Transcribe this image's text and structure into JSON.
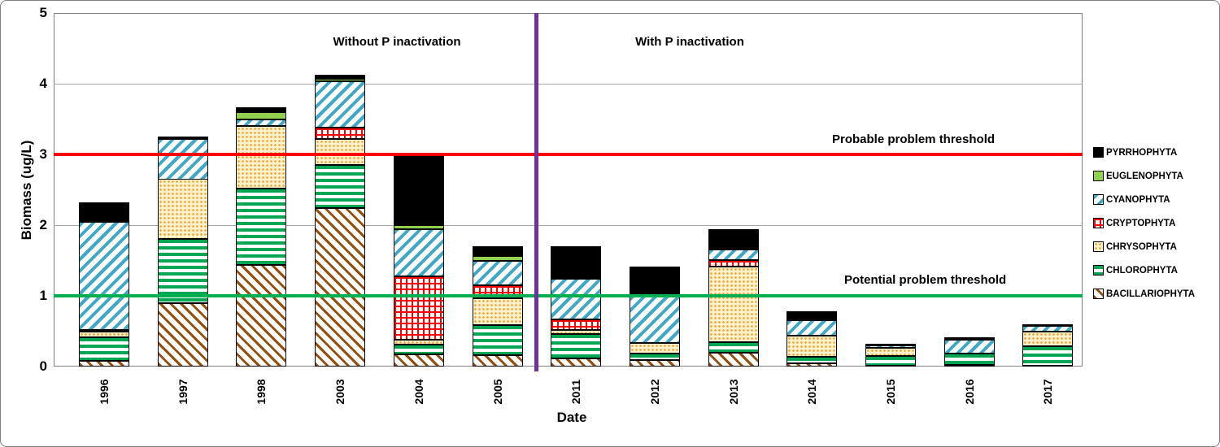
{
  "figure": {
    "y_axis_title": "Biomass (ug/L)",
    "x_axis_title": "Date",
    "section_left_label": "Without P inactivation",
    "section_right_label": "With P inactivation"
  },
  "chart_data": {
    "type": "bar",
    "stacked": true,
    "xlabel": "Date",
    "ylabel": "Biomass (ug/L)",
    "ylim": [
      0,
      5
    ],
    "yticks": [
      0,
      1,
      2,
      3,
      4,
      5
    ],
    "grid": true,
    "categories": [
      "1996",
      "1997",
      "1998",
      "2003",
      "2004",
      "2005",
      "2011",
      "2012",
      "2013",
      "2014",
      "2015",
      "2016",
      "2017"
    ],
    "series": [
      {
        "name": "BACILLARIOPHYTA",
        "pattern": "brown-diagonal",
        "color": "#964E0C",
        "values": [
          0.08,
          0.9,
          1.44,
          2.24,
          0.17,
          0.16,
          0.12,
          0.09,
          0.2,
          0.05,
          0.01,
          0.02,
          0.01
        ]
      },
      {
        "name": "CHLOROPHYTA",
        "pattern": "green-hstripes",
        "color": "#00A651",
        "values": [
          0.33,
          0.9,
          1.08,
          0.61,
          0.14,
          0.43,
          0.34,
          0.1,
          0.15,
          0.09,
          0.14,
          0.16,
          0.28
        ]
      },
      {
        "name": "CHRYSOPHYTA",
        "pattern": "tan-dots",
        "color": "#EFA63B",
        "values": [
          0.08,
          0.85,
          0.88,
          0.37,
          0.07,
          0.38,
          0.06,
          0.14,
          1.06,
          0.3,
          0.12,
          0.0,
          0.21
        ]
      },
      {
        "name": "CRYPTOPHYTA",
        "pattern": "red-grid",
        "color": "#FF0000",
        "values": [
          0.03,
          0.0,
          0.0,
          0.16,
          0.9,
          0.18,
          0.15,
          0.0,
          0.1,
          0.0,
          0.0,
          0.0,
          0.0
        ]
      },
      {
        "name": "CYANOPHYTA",
        "pattern": "teal-diagonal",
        "color": "#3FA8C9",
        "values": [
          1.53,
          0.57,
          0.1,
          0.65,
          0.66,
          0.34,
          0.57,
          0.67,
          0.14,
          0.22,
          0.02,
          0.2,
          0.07
        ]
      },
      {
        "name": "EUGLENOPHYTA",
        "pattern": "lightgreen-solid",
        "color": "#92D050",
        "values": [
          0.0,
          0.0,
          0.1,
          0.04,
          0.06,
          0.07,
          0.03,
          0.0,
          0.0,
          0.0,
          0.0,
          0.0,
          0.02
        ]
      },
      {
        "name": "PYRRHOPHYTA",
        "pattern": "black-solid",
        "color": "#000000",
        "values": [
          0.27,
          0.03,
          0.07,
          0.06,
          1.0,
          0.14,
          0.43,
          0.41,
          0.29,
          0.12,
          0.02,
          0.03,
          0.0
        ]
      }
    ],
    "totals": [
      2.32,
      3.25,
      3.67,
      4.13,
      3.0,
      1.7,
      1.7,
      1.41,
      1.94,
      0.78,
      0.31,
      0.41,
      0.59
    ],
    "thresholds": [
      {
        "label": "Probable problem threshold",
        "value": 3,
        "color": "#FF0000"
      },
      {
        "label": "Potential problem threshold",
        "value": 1,
        "color": "#00B050"
      }
    ],
    "divider": {
      "position_between": [
        "2005",
        "2011"
      ],
      "color": "#7030A0",
      "label_left": "Without P inactivation",
      "label_right": "With P inactivation"
    },
    "legend_position": "right",
    "legend_order": [
      "PYRRHOPHYTA",
      "EUGLENOPHYTA",
      "CYANOPHYTA",
      "CRYPTOPHYTA",
      "CHRYSOPHYTA",
      "CHLOROPHYTA",
      "BACILLARIOPHYTA"
    ]
  }
}
